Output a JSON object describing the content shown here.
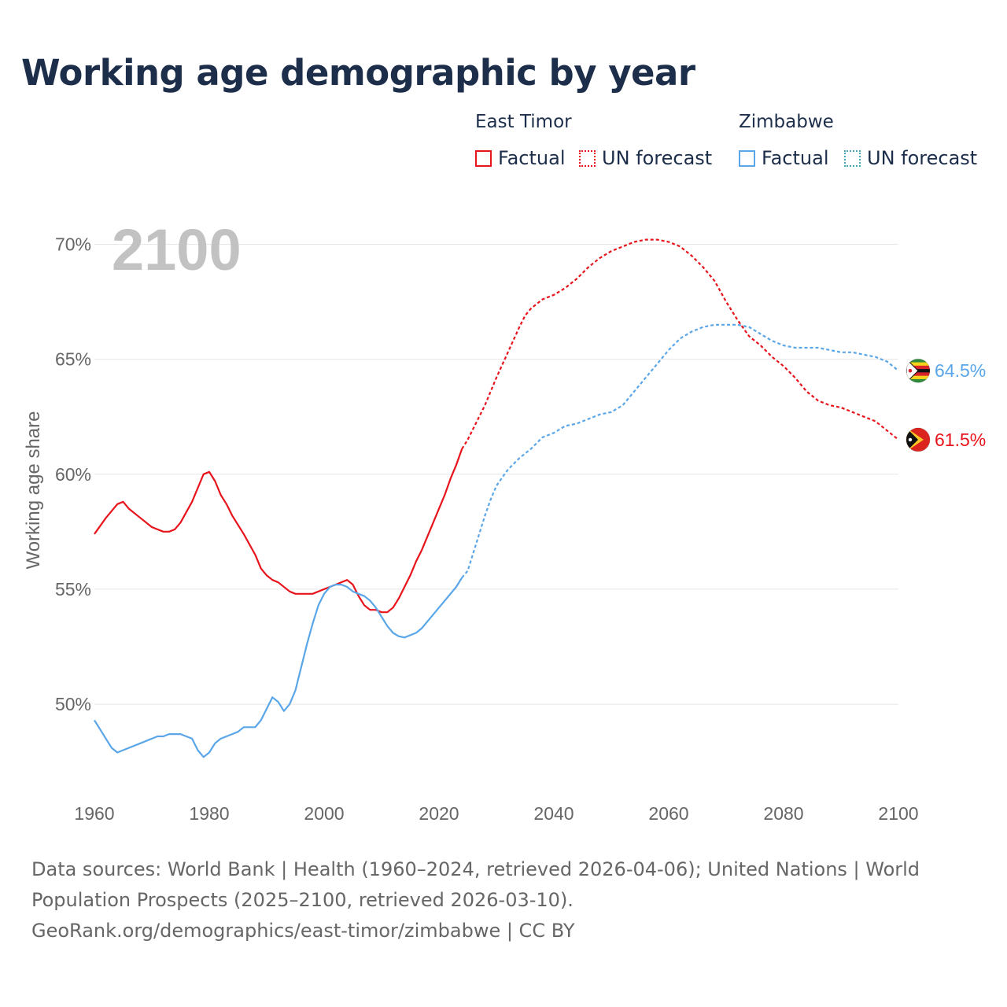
{
  "title": "Working age demographic by year",
  "legend": {
    "groups": [
      {
        "name": "East Timor",
        "factual_label": "Factual",
        "forecast_label": "UN forecast",
        "color": "#e8141c"
      },
      {
        "name": "Zimbabwe",
        "factual_label": "Factual",
        "forecast_label": "UN forecast",
        "color": "#5aa6e8"
      }
    ]
  },
  "chart_data": {
    "type": "line",
    "title": "Working age demographic by year",
    "ylabel": "Working age share",
    "xlabel": "",
    "year_watermark": "2100",
    "xlim": [
      1960,
      2100
    ],
    "ylim": [
      46.0,
      72.0
    ],
    "x_ticks": [
      1960,
      1980,
      2000,
      2020,
      2040,
      2060,
      2080,
      2100
    ],
    "y_ticks": [
      {
        "value": 50,
        "label": "50%"
      },
      {
        "value": 55,
        "label": "55%"
      },
      {
        "value": 60,
        "label": "60%"
      },
      {
        "value": 65,
        "label": "65%"
      },
      {
        "value": 70,
        "label": "70%"
      }
    ],
    "grid": true,
    "factual_end": 2024,
    "series": [
      {
        "name": "East Timor",
        "color": "#e8141c",
        "end_label": "61.5%",
        "flag": "east-timor",
        "points": [
          [
            1960,
            57.4
          ],
          [
            1962,
            58.1
          ],
          [
            1964,
            58.7
          ],
          [
            1965,
            58.8
          ],
          [
            1966,
            58.5
          ],
          [
            1968,
            58.1
          ],
          [
            1970,
            57.7
          ],
          [
            1972,
            57.5
          ],
          [
            1973,
            57.5
          ],
          [
            1974,
            57.6
          ],
          [
            1975,
            57.9
          ],
          [
            1977,
            58.8
          ],
          [
            1979,
            60.0
          ],
          [
            1980,
            60.1
          ],
          [
            1981,
            59.7
          ],
          [
            1982,
            59.1
          ],
          [
            1983,
            58.7
          ],
          [
            1984,
            58.2
          ],
          [
            1986,
            57.4
          ],
          [
            1988,
            56.5
          ],
          [
            1989,
            55.9
          ],
          [
            1990,
            55.6
          ],
          [
            1991,
            55.4
          ],
          [
            1992,
            55.3
          ],
          [
            1994,
            54.9
          ],
          [
            1995,
            54.8
          ],
          [
            1997,
            54.8
          ],
          [
            1998,
            54.8
          ],
          [
            2000,
            55.0
          ],
          [
            2002,
            55.2
          ],
          [
            2004,
            55.4
          ],
          [
            2005,
            55.2
          ],
          [
            2006,
            54.7
          ],
          [
            2007,
            54.3
          ],
          [
            2008,
            54.1
          ],
          [
            2009,
            54.1
          ],
          [
            2010,
            54.0
          ],
          [
            2011,
            54.0
          ],
          [
            2012,
            54.2
          ],
          [
            2013,
            54.6
          ],
          [
            2014,
            55.1
          ],
          [
            2015,
            55.6
          ],
          [
            2016,
            56.2
          ],
          [
            2017,
            56.7
          ],
          [
            2018,
            57.3
          ],
          [
            2019,
            57.9
          ],
          [
            2020,
            58.5
          ],
          [
            2021,
            59.1
          ],
          [
            2022,
            59.8
          ],
          [
            2023,
            60.4
          ],
          [
            2024,
            61.1
          ],
          [
            2025,
            61.5
          ],
          [
            2026,
            62.0
          ],
          [
            2028,
            63.0
          ],
          [
            2030,
            64.2
          ],
          [
            2032,
            65.3
          ],
          [
            2034,
            66.4
          ],
          [
            2035,
            66.9
          ],
          [
            2036,
            67.2
          ],
          [
            2038,
            67.6
          ],
          [
            2040,
            67.8
          ],
          [
            2042,
            68.1
          ],
          [
            2044,
            68.5
          ],
          [
            2046,
            69.0
          ],
          [
            2048,
            69.4
          ],
          [
            2050,
            69.7
          ],
          [
            2052,
            69.9
          ],
          [
            2054,
            70.1
          ],
          [
            2056,
            70.2
          ],
          [
            2058,
            70.2
          ],
          [
            2060,
            70.1
          ],
          [
            2062,
            69.9
          ],
          [
            2064,
            69.5
          ],
          [
            2066,
            69.0
          ],
          [
            2068,
            68.4
          ],
          [
            2070,
            67.5
          ],
          [
            2072,
            66.7
          ],
          [
            2074,
            66.0
          ],
          [
            2076,
            65.6
          ],
          [
            2078,
            65.1
          ],
          [
            2080,
            64.7
          ],
          [
            2082,
            64.2
          ],
          [
            2084,
            63.6
          ],
          [
            2086,
            63.2
          ],
          [
            2088,
            63.0
          ],
          [
            2090,
            62.9
          ],
          [
            2092,
            62.7
          ],
          [
            2094,
            62.5
          ],
          [
            2096,
            62.3
          ],
          [
            2098,
            61.9
          ],
          [
            2100,
            61.5
          ]
        ]
      },
      {
        "name": "Zimbabwe",
        "color": "#5aa6e8",
        "end_label": "64.5%",
        "flag": "zimbabwe",
        "points": [
          [
            1960,
            49.3
          ],
          [
            1961,
            48.9
          ],
          [
            1962,
            48.5
          ],
          [
            1963,
            48.1
          ],
          [
            1964,
            47.9
          ],
          [
            1966,
            48.1
          ],
          [
            1968,
            48.3
          ],
          [
            1970,
            48.5
          ],
          [
            1971,
            48.6
          ],
          [
            1972,
            48.6
          ],
          [
            1973,
            48.7
          ],
          [
            1975,
            48.7
          ],
          [
            1977,
            48.5
          ],
          [
            1978,
            48.0
          ],
          [
            1979,
            47.7
          ],
          [
            1980,
            47.9
          ],
          [
            1981,
            48.3
          ],
          [
            1982,
            48.5
          ],
          [
            1984,
            48.7
          ],
          [
            1985,
            48.8
          ],
          [
            1986,
            49.0
          ],
          [
            1988,
            49.0
          ],
          [
            1989,
            49.3
          ],
          [
            1990,
            49.8
          ],
          [
            1991,
            50.3
          ],
          [
            1992,
            50.1
          ],
          [
            1993,
            49.7
          ],
          [
            1994,
            50.0
          ],
          [
            1995,
            50.6
          ],
          [
            1996,
            51.6
          ],
          [
            1997,
            52.6
          ],
          [
            1998,
            53.5
          ],
          [
            1999,
            54.3
          ],
          [
            2000,
            54.8
          ],
          [
            2001,
            55.1
          ],
          [
            2002,
            55.2
          ],
          [
            2003,
            55.2
          ],
          [
            2004,
            55.1
          ],
          [
            2005,
            54.9
          ],
          [
            2006,
            54.8
          ],
          [
            2007,
            54.7
          ],
          [
            2008,
            54.5
          ],
          [
            2009,
            54.2
          ],
          [
            2010,
            53.8
          ],
          [
            2011,
            53.4
          ],
          [
            2012,
            53.1
          ],
          [
            2013,
            52.95
          ],
          [
            2014,
            52.9
          ],
          [
            2015,
            53.0
          ],
          [
            2016,
            53.1
          ],
          [
            2017,
            53.3
          ],
          [
            2018,
            53.6
          ],
          [
            2019,
            53.9
          ],
          [
            2020,
            54.2
          ],
          [
            2022,
            54.8
          ],
          [
            2023,
            55.1
          ],
          [
            2024,
            55.5
          ],
          [
            2025,
            55.8
          ],
          [
            2026,
            56.6
          ],
          [
            2027,
            57.4
          ],
          [
            2028,
            58.2
          ],
          [
            2029,
            58.9
          ],
          [
            2030,
            59.5
          ],
          [
            2032,
            60.2
          ],
          [
            2034,
            60.7
          ],
          [
            2036,
            61.1
          ],
          [
            2038,
            61.6
          ],
          [
            2040,
            61.8
          ],
          [
            2042,
            62.1
          ],
          [
            2044,
            62.2
          ],
          [
            2046,
            62.4
          ],
          [
            2048,
            62.6
          ],
          [
            2050,
            62.7
          ],
          [
            2052,
            63.0
          ],
          [
            2054,
            63.6
          ],
          [
            2056,
            64.2
          ],
          [
            2058,
            64.8
          ],
          [
            2060,
            65.4
          ],
          [
            2062,
            65.9
          ],
          [
            2064,
            66.2
          ],
          [
            2066,
            66.4
          ],
          [
            2068,
            66.5
          ],
          [
            2072,
            66.5
          ],
          [
            2074,
            66.4
          ],
          [
            2076,
            66.1
          ],
          [
            2078,
            65.8
          ],
          [
            2080,
            65.6
          ],
          [
            2082,
            65.5
          ],
          [
            2086,
            65.5
          ],
          [
            2088,
            65.4
          ],
          [
            2090,
            65.3
          ],
          [
            2092,
            65.3
          ],
          [
            2094,
            65.2
          ],
          [
            2096,
            65.1
          ],
          [
            2098,
            64.9
          ],
          [
            2100,
            64.5
          ]
        ]
      }
    ]
  },
  "footer": {
    "line1": "Data sources: World Bank | Health (1960–2024, retrieved 2026-04-06); United Nations | World",
    "line2": "Population Prospects (2025–2100, retrieved 2026-03-10).",
    "line3": "GeoRank.org/demographics/east-timor/zimbabwe | CC BY"
  }
}
